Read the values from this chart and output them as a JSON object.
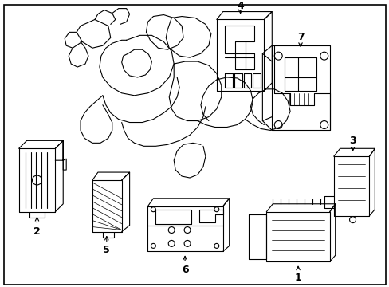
{
  "background_color": "#ffffff",
  "fig_width": 4.89,
  "fig_height": 3.6,
  "dpi": 100,
  "border_color": "#000000",
  "border_linewidth": 1.2,
  "line_color": "#000000",
  "text_color": "#000000",
  "label_fontsize": 9,
  "label_fontweight": "bold",
  "lw": 0.8
}
